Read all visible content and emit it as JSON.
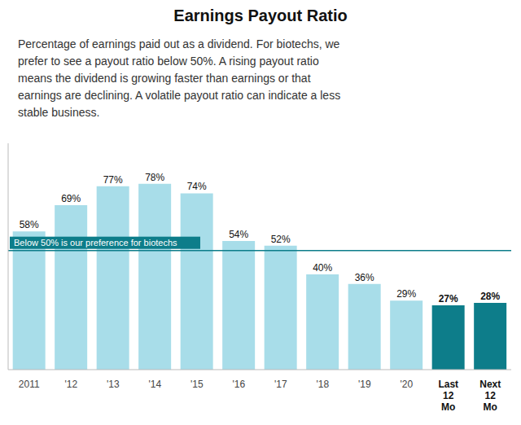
{
  "chart_data": {
    "type": "bar",
    "title": "Earnings Payout Ratio",
    "subtitle": "Percentage of earnings paid out as a dividend. For biotechs, we\nprefer to see a payout ratio below 50%. A rising payout ratio\nmeans the dividend is growing faster than earnings or that\nearnings are declining. A volatile payout ratio can indicate a less\nstable business.",
    "categories": [
      "2011",
      "'12",
      "'13",
      "'14",
      "'15",
      "'16",
      "'17",
      "'18",
      "'19",
      "'20",
      "Last\n12\nMo",
      "Next\n12\nMo"
    ],
    "values": [
      58,
      69,
      77,
      78,
      74,
      54,
      52,
      40,
      36,
      29,
      27,
      28
    ],
    "value_labels": [
      "58%",
      "69%",
      "77%",
      "78%",
      "74%",
      "54%",
      "52%",
      "40%",
      "36%",
      "29%",
      "27%",
      "28%"
    ],
    "colors": [
      "#a8dde9",
      "#a8dde9",
      "#a8dde9",
      "#a8dde9",
      "#a8dde9",
      "#a8dde9",
      "#a8dde9",
      "#a8dde9",
      "#a8dde9",
      "#a8dde9",
      "#0d7d8a",
      "#0d7d8a"
    ],
    "ylim": [
      0,
      95
    ],
    "data_labels": true,
    "tick_labels": "x",
    "reference_line": {
      "y": 50,
      "label": "Below 50% is our preference for biotechs",
      "color": "#0d7d8a"
    }
  }
}
